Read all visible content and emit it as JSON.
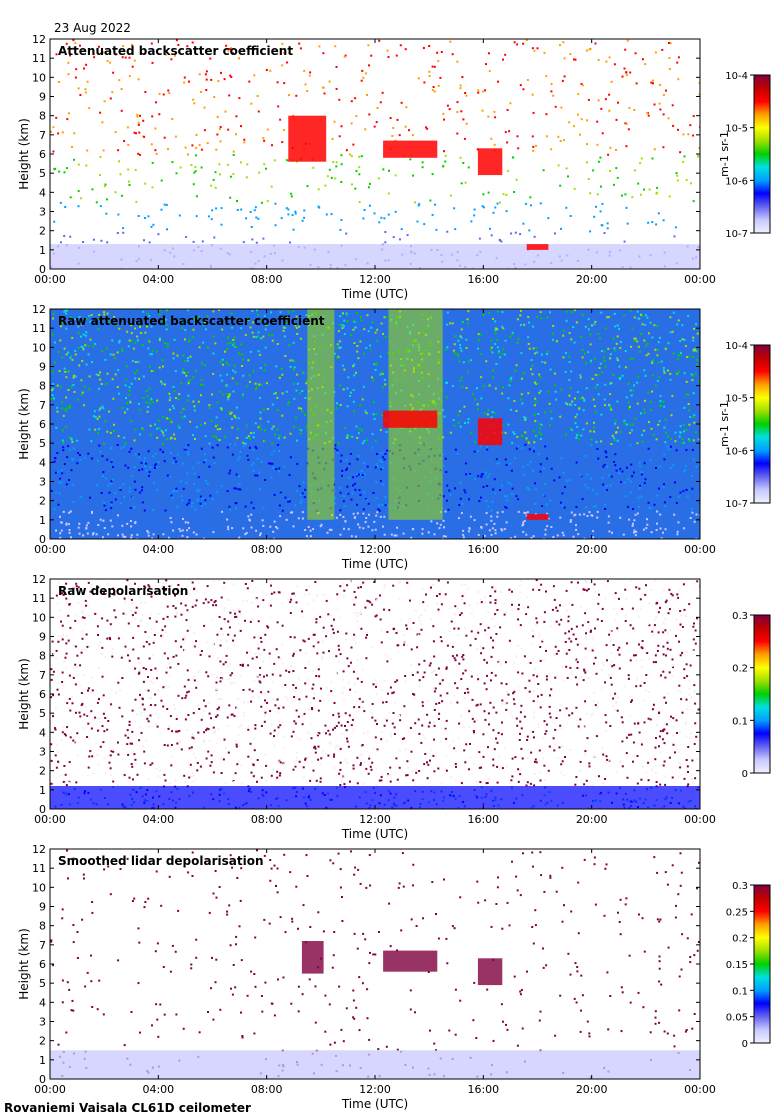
{
  "date": "23 Aug 2022",
  "footer": "Rovaniemi Vaisala CL61D ceilometer",
  "colors": {
    "scale": [
      "#f0f0ff",
      "#c8c8ff",
      "#6464f0",
      "#0000ff",
      "#00a0ff",
      "#00e0e0",
      "#00d000",
      "#a0e000",
      "#ffff00",
      "#ffa000",
      "#ff0000",
      "#c00000",
      "#800040"
    ],
    "background": "#ffffff",
    "raw_background": "#2a6ee6"
  },
  "chart_data": [
    {
      "type": "heatmap",
      "title": "Attenuated backscatter coefficient",
      "xlabel": "Time (UTC)",
      "ylabel": "Height (km)",
      "xticks": [
        "00:00",
        "04:00",
        "08:00",
        "12:00",
        "16:00",
        "20:00",
        "00:00"
      ],
      "xlim": [
        0,
        24
      ],
      "ylim": [
        0,
        12
      ],
      "yticks": [
        0,
        1,
        2,
        3,
        4,
        5,
        6,
        7,
        8,
        9,
        10,
        11,
        12
      ],
      "colorbar": {
        "scale": "log",
        "range": [
          1e-07,
          0.0001
        ],
        "tick_labels": [
          "10-7",
          "10-6",
          "10-5",
          "10-4"
        ],
        "unit": "m-1 sr-1"
      },
      "features": [
        {
          "name": "boundary layer",
          "start_h": 0,
          "end_h": 24,
          "top_km": 1.3
        },
        {
          "name": "cloud",
          "start_h": 8.8,
          "end_h": 10.2,
          "bottom_km": 5.6,
          "top_km": 8.0
        },
        {
          "name": "cloud",
          "start_h": 12.3,
          "end_h": 14.3,
          "bottom_km": 5.8,
          "top_km": 6.7
        },
        {
          "name": "cloud",
          "start_h": 15.8,
          "end_h": 16.7,
          "bottom_km": 4.9,
          "top_km": 6.3
        },
        {
          "name": "cloud",
          "start_h": 17.6,
          "end_h": 18.4,
          "bottom_km": 1.0,
          "top_km": 1.3
        }
      ]
    },
    {
      "type": "heatmap",
      "title": "Raw attenuated backscatter coefficient",
      "xlabel": "Time (UTC)",
      "ylabel": "Height (km)",
      "xticks": [
        "00:00",
        "04:00",
        "08:00",
        "12:00",
        "16:00",
        "20:00",
        "00:00"
      ],
      "xlim": [
        0,
        24
      ],
      "ylim": [
        0,
        12
      ],
      "yticks": [
        0,
        1,
        2,
        3,
        4,
        5,
        6,
        7,
        8,
        9,
        10,
        11,
        12
      ],
      "colorbar": {
        "scale": "log",
        "range": [
          1e-07,
          0.0001
        ],
        "tick_labels": [
          "10-7",
          "10-6",
          "10-5",
          "10-4"
        ],
        "unit": "m-1 sr-1"
      },
      "features": [
        {
          "name": "solar noise band",
          "start_h": 9.5,
          "end_h": 10.5,
          "bottom_km": 1.0,
          "top_km": 12
        },
        {
          "name": "solar noise band",
          "start_h": 12.5,
          "end_h": 14.5,
          "bottom_km": 1.0,
          "top_km": 12
        },
        {
          "name": "cloud",
          "start_h": 12.3,
          "end_h": 14.3,
          "bottom_km": 5.8,
          "top_km": 6.7
        },
        {
          "name": "cloud",
          "start_h": 15.8,
          "end_h": 16.7,
          "bottom_km": 4.9,
          "top_km": 6.3
        },
        {
          "name": "cloud",
          "start_h": 17.6,
          "end_h": 18.4,
          "bottom_km": 1.0,
          "top_km": 1.3
        }
      ]
    },
    {
      "type": "heatmap",
      "title": "Raw depolarisation",
      "xlabel": "Time (UTC)",
      "ylabel": "Height (km)",
      "xticks": [
        "00:00",
        "04:00",
        "08:00",
        "12:00",
        "16:00",
        "20:00",
        "00:00"
      ],
      "xlim": [
        0,
        24
      ],
      "ylim": [
        0,
        12
      ],
      "yticks": [
        0,
        1,
        2,
        3,
        4,
        5,
        6,
        7,
        8,
        9,
        10,
        11,
        12
      ],
      "colorbar": {
        "scale": "linear",
        "range": [
          0,
          0.3
        ],
        "tick_labels": [
          "0",
          "0.1",
          "0.2",
          "0.3"
        ],
        "unit": ""
      },
      "features": [
        {
          "name": "low depolarisation layer",
          "start_h": 0,
          "end_h": 24,
          "top_km": 1.2
        }
      ]
    },
    {
      "type": "heatmap",
      "title": "Smoothed lidar depolarisation",
      "xlabel": "Time (UTC)",
      "ylabel": "Height (km)",
      "xticks": [
        "00:00",
        "04:00",
        "08:00",
        "12:00",
        "16:00",
        "20:00",
        "00:00"
      ],
      "xlim": [
        0,
        24
      ],
      "ylim": [
        0,
        12
      ],
      "yticks": [
        0,
        1,
        2,
        3,
        4,
        5,
        6,
        7,
        8,
        9,
        10,
        11,
        12
      ],
      "colorbar": {
        "scale": "linear",
        "range": [
          0,
          0.3
        ],
        "tick_labels": [
          "0",
          "0.05",
          "0.1",
          "0.15",
          "0.2",
          "0.25",
          "0.3"
        ],
        "unit": ""
      },
      "features": [
        {
          "name": "boundary layer",
          "start_h": 0,
          "end_h": 24,
          "top_km": 1.5
        },
        {
          "name": "cloud",
          "start_h": 9.3,
          "end_h": 10.1,
          "bottom_km": 5.5,
          "top_km": 7.2
        },
        {
          "name": "cloud",
          "start_h": 12.3,
          "end_h": 14.3,
          "bottom_km": 5.6,
          "top_km": 6.7
        },
        {
          "name": "cloud",
          "start_h": 15.8,
          "end_h": 16.7,
          "bottom_km": 4.9,
          "top_km": 6.3
        }
      ]
    }
  ]
}
